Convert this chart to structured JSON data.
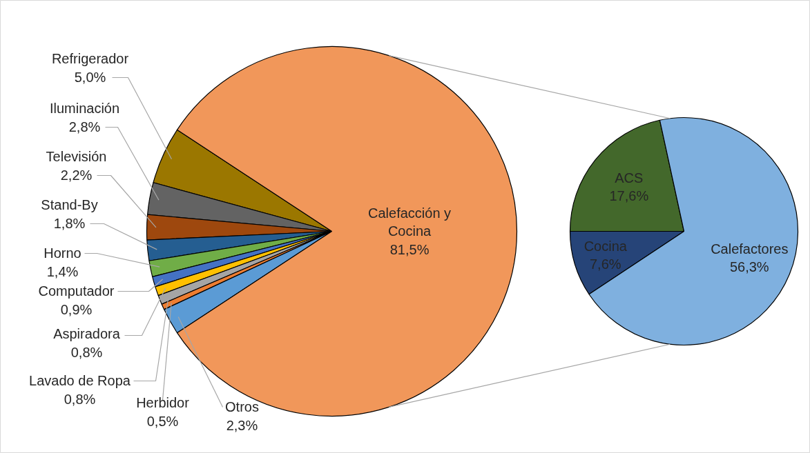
{
  "chart_data": [
    {
      "type": "pie",
      "categories": [
        "Refrigerador",
        "Iluminación",
        "Televisión",
        "Stand-By",
        "Horno",
        "Computador",
        "Aspiradora",
        "Lavado de Ropa",
        "Herbidor",
        "Otros",
        "Calefacción y Cocina"
      ],
      "values": [
        5.0,
        2.8,
        2.2,
        1.8,
        1.4,
        0.9,
        0.8,
        0.8,
        0.5,
        2.3,
        81.5
      ],
      "colors": [
        "#9b7700",
        "#636363",
        "#9e480e",
        "#255e91",
        "#70ad47",
        "#4472c4",
        "#ffc000",
        "#a5a5a5",
        "#ed7d31",
        "#5b9bd5",
        "#f1975a"
      ],
      "value_labels": [
        "5,0%",
        "2,8%",
        "2,2%",
        "1,8%",
        "1,4%",
        "0,9%",
        "0,8%",
        "0,8%",
        "0,5%",
        "2,3%",
        "81,5%"
      ]
    },
    {
      "type": "pie",
      "categories": [
        "ACS",
        "Cocina",
        "Calefactores"
      ],
      "values": [
        17.6,
        7.6,
        56.3
      ],
      "colors": [
        "#43682b",
        "#264478",
        "#7fb0df"
      ],
      "value_labels": [
        "17,6%",
        "7,6%",
        "56,3%"
      ]
    }
  ]
}
